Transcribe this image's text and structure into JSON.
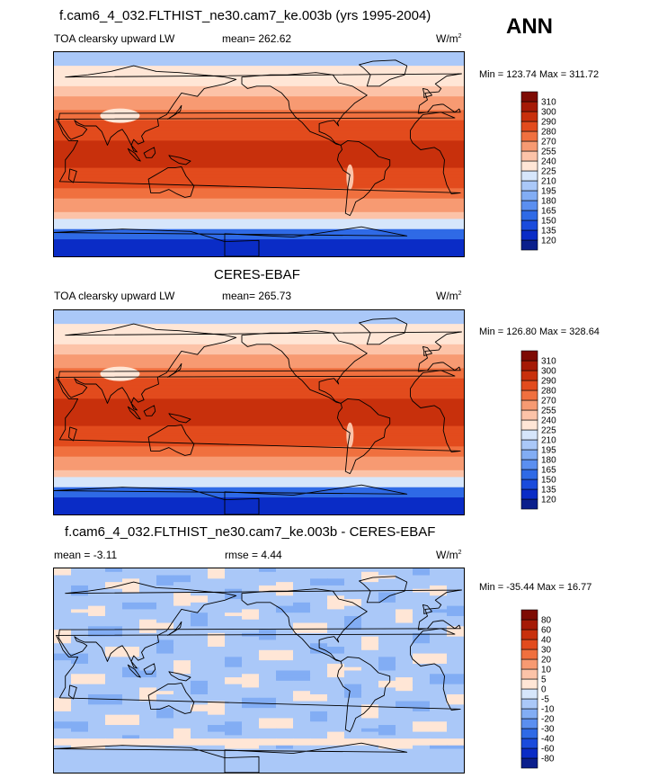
{
  "ann_label": "ANN",
  "panels": [
    {
      "title": "f.cam6_4_032.FLTHIST_ne30.cam7_ke.003b (yrs 1995-2004)",
      "left_label": "TOA clearsky upward LW",
      "mean_label": "mean= 262.62",
      "units": "W/m",
      "units_sup": "2",
      "minmax": "Min = 123.74 Max = 311.72"
    },
    {
      "title": "CERES-EBAF",
      "left_label": "TOA clearsky upward LW",
      "mean_label": "mean= 265.73",
      "units": "W/m",
      "units_sup": "2",
      "minmax": "Min = 126.80 Max = 328.64"
    },
    {
      "title": "f.cam6_4_032.FLTHIST_ne30.cam7_ke.003b - CERES-EBAF",
      "left_label": "mean =  -3.11",
      "mean_label": "rmse =   4.44",
      "units": "W/m",
      "units_sup": "2",
      "minmax": "Min = -35.44 Max =  16.77"
    }
  ],
  "chart_data": [
    {
      "type": "heatmap",
      "title": "f.cam6_4_032.FLTHIST_ne30.cam7_ke.003b (yrs 1995-2004)",
      "variable": "TOA clearsky upward LW",
      "mean": 262.62,
      "min": 123.74,
      "max": 311.72,
      "units": "W/m2",
      "colorbar_levels": [
        120,
        135,
        150,
        165,
        180,
        195,
        210,
        225,
        240,
        255,
        270,
        280,
        290,
        300,
        310
      ],
      "colorbar_colors": [
        "#0b1f8c",
        "#0a2cc6",
        "#1a4bdc",
        "#2f6ae6",
        "#5b8ff0",
        "#82adf4",
        "#aac8f8",
        "#d6e6fb",
        "#ffe6d6",
        "#fcc3a8",
        "#f79a72",
        "#f0703f",
        "#e24b1d",
        "#c8300c",
        "#a51a06",
        "#7e0b03"
      ]
    },
    {
      "type": "heatmap",
      "title": "CERES-EBAF",
      "variable": "TOA clearsky upward LW",
      "mean": 265.73,
      "min": 126.8,
      "max": 328.64,
      "units": "W/m2",
      "colorbar_levels": [
        120,
        135,
        150,
        165,
        180,
        195,
        210,
        225,
        240,
        255,
        270,
        280,
        290,
        300,
        310
      ],
      "colorbar_colors": [
        "#0b1f8c",
        "#0a2cc6",
        "#1a4bdc",
        "#2f6ae6",
        "#5b8ff0",
        "#82adf4",
        "#aac8f8",
        "#d6e6fb",
        "#ffe6d6",
        "#fcc3a8",
        "#f79a72",
        "#f0703f",
        "#e24b1d",
        "#c8300c",
        "#a51a06",
        "#7e0b03"
      ]
    },
    {
      "type": "heatmap",
      "title": "f.cam6_4_032.FLTHIST_ne30.cam7_ke.003b - CERES-EBAF",
      "mean": -3.11,
      "rmse": 4.44,
      "min": -35.44,
      "max": 16.77,
      "units": "W/m2",
      "colorbar_levels": [
        -80,
        -60,
        -40,
        -30,
        -20,
        -10,
        -5,
        0,
        5,
        10,
        20,
        30,
        40,
        60,
        80
      ],
      "colorbar_colors": [
        "#0b1f8c",
        "#0a2cc6",
        "#1a4bdc",
        "#2f6ae6",
        "#5b8ff0",
        "#82adf4",
        "#aac8f8",
        "#d6e6fb",
        "#ffe6d6",
        "#fcc3a8",
        "#f79a72",
        "#f0703f",
        "#e24b1d",
        "#c8300c",
        "#a51a06",
        "#7e0b03"
      ]
    }
  ]
}
